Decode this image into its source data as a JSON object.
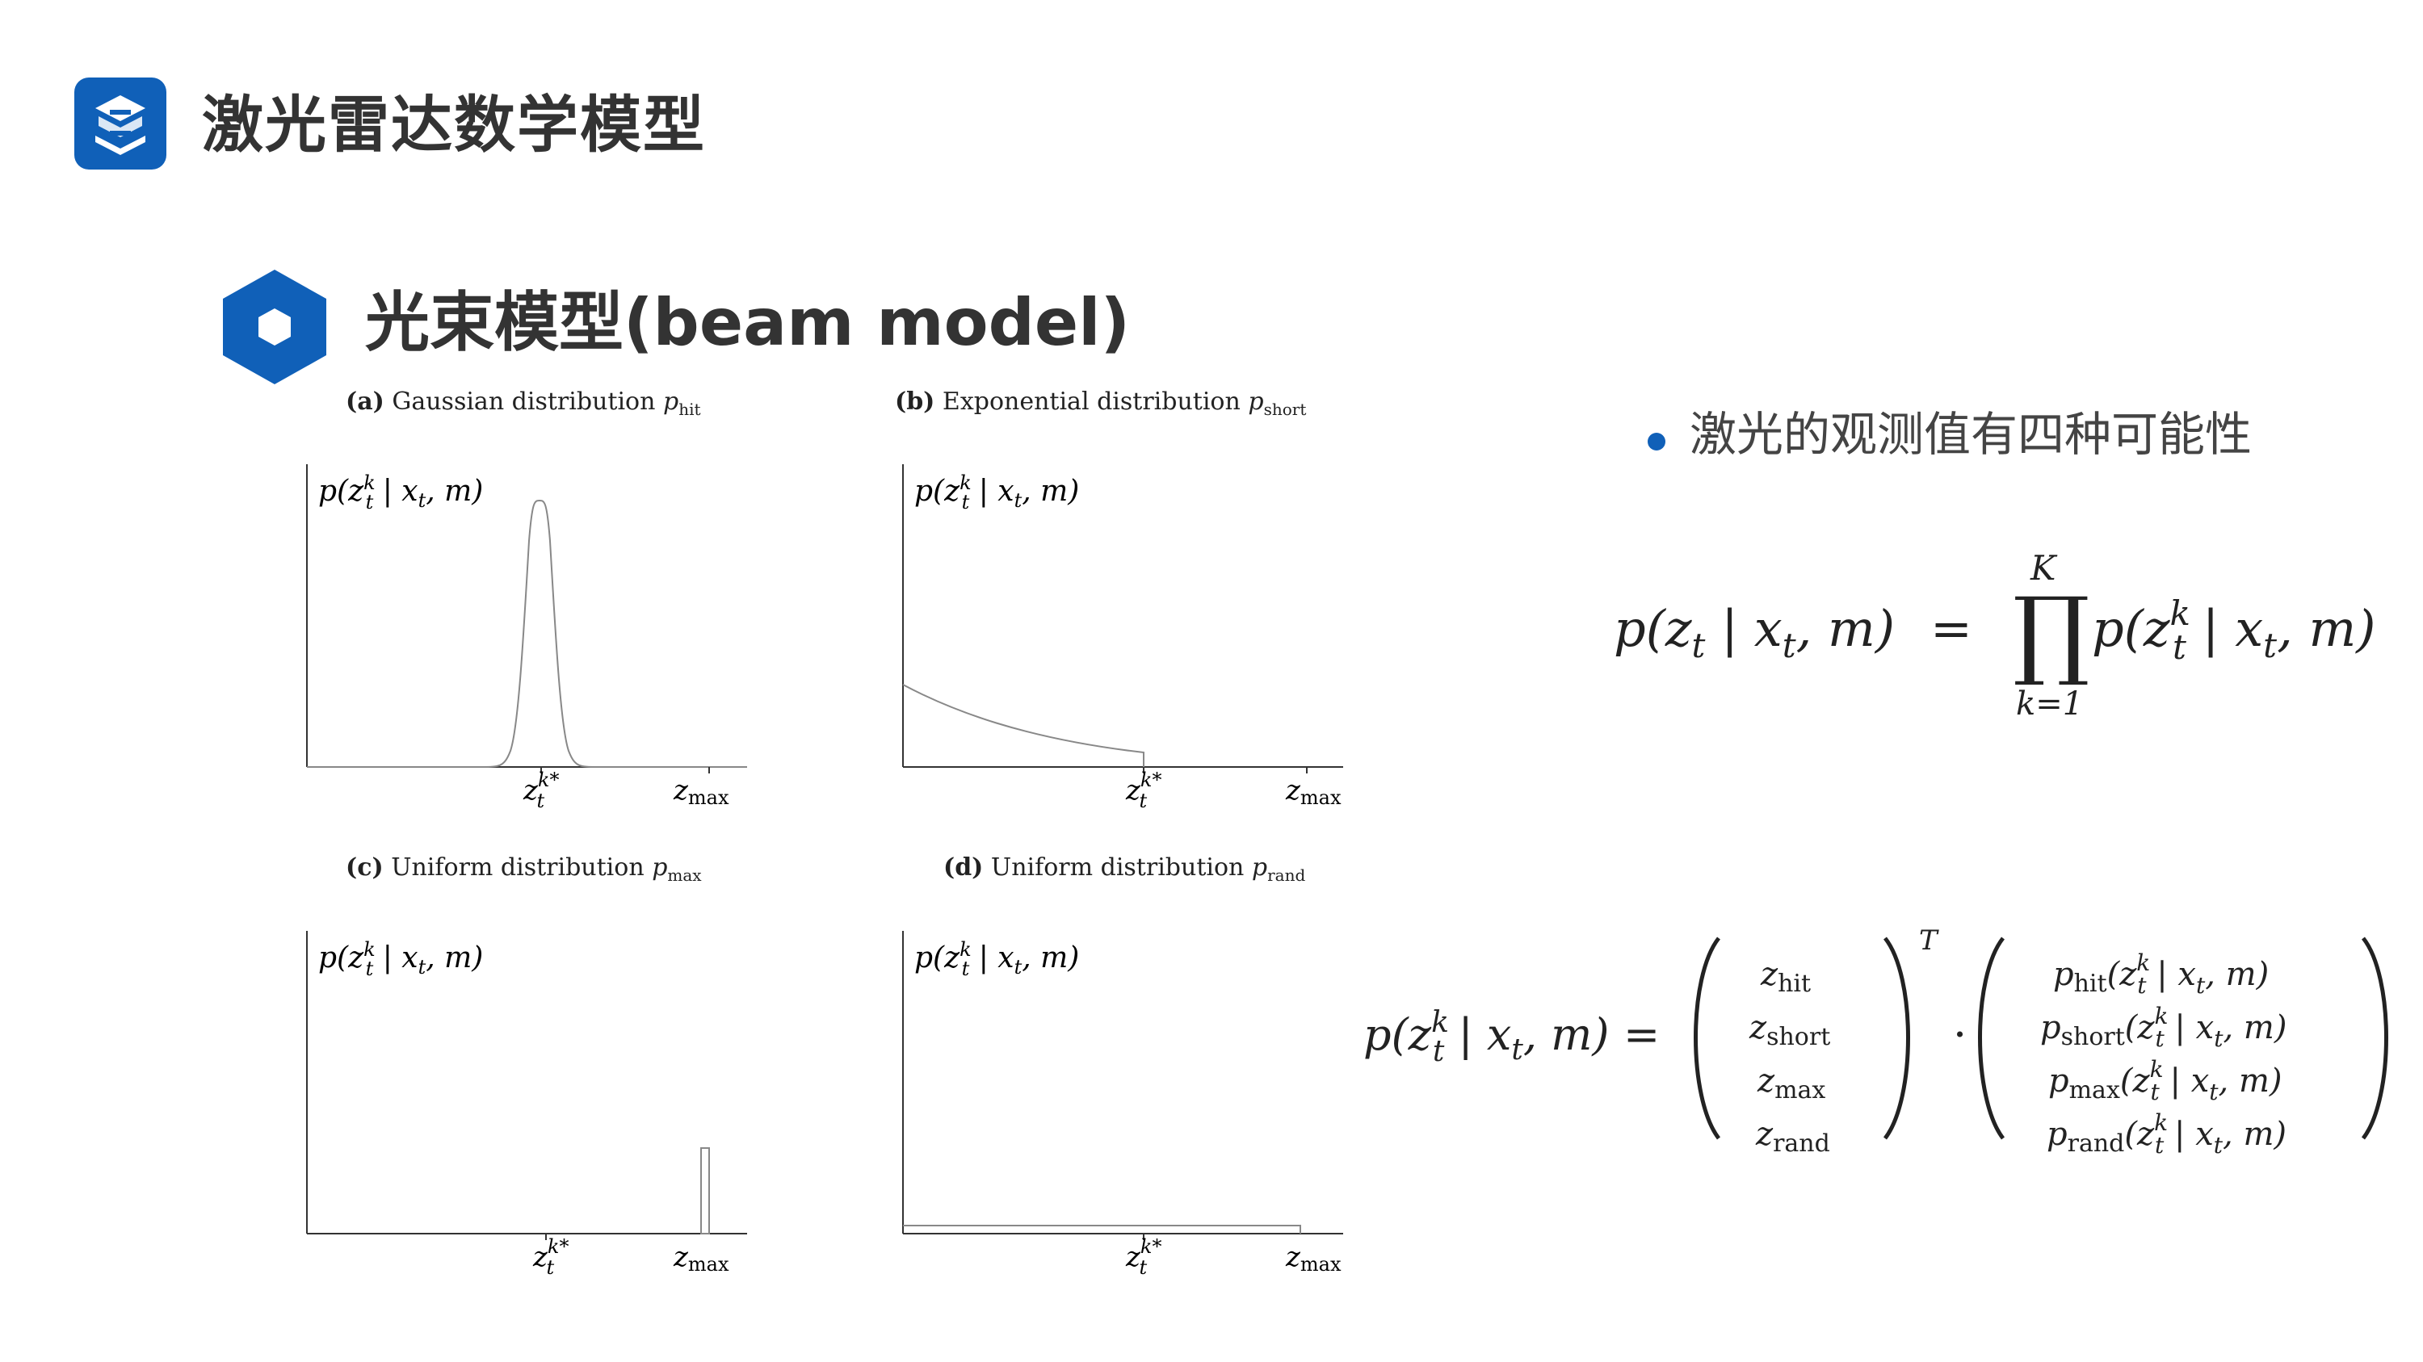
{
  "header": {
    "title": "激光雷达数学模型",
    "logo_icon": "brand-s-logo-icon",
    "accent_color": "#1060b8"
  },
  "section": {
    "icon": "hexagon-icon",
    "title": "光束模型(beam model)"
  },
  "bullet": {
    "text": "激光的观测值有四种可能性"
  },
  "plots": [
    {
      "id": "a",
      "caption_tag": "(a)",
      "caption_text": "Gaussian distribution",
      "caption_sym": "p",
      "caption_sub": "hit",
      "ylabel": "p(z",
      "ylabel_rest": " | x",
      "ylabel_end": ", m)",
      "tick1": "z",
      "tick2": "z",
      "tick2_sub": "max"
    },
    {
      "id": "b",
      "caption_tag": "(b)",
      "caption_text": "Exponential distribution",
      "caption_sym": "p",
      "caption_sub": "short",
      "ylabel": "p(z",
      "ylabel_rest": " | x",
      "ylabel_end": ", m)",
      "tick1": "z",
      "tick2": "z",
      "tick2_sub": "max"
    },
    {
      "id": "c",
      "caption_tag": "(c)",
      "caption_text": "Uniform distribution",
      "caption_sym": "p",
      "caption_sub": "max",
      "ylabel": "p(z",
      "ylabel_rest": " | x",
      "ylabel_end": ", m)",
      "tick1": "z",
      "tick2": "z",
      "tick2_sub": "max"
    },
    {
      "id": "d",
      "caption_tag": "(d)",
      "caption_text": "Uniform distribution",
      "caption_sym": "p",
      "caption_sub": "rand",
      "ylabel": "p(z",
      "ylabel_rest": " | x",
      "ylabel_end": ", m)",
      "tick1": "z",
      "tick2": "z",
      "tick2_sub": "max"
    }
  ],
  "equations": {
    "eq1_lhs": "p(z",
    "eq1_lhs_sub": "t",
    "eq1_lhs_rest": " | x",
    "eq1_lhs_sub2": "t",
    "eq1_lhs_end": ", m)",
    "eq1_equals": "=",
    "eq1_prod": "∏",
    "eq1_upper": "K",
    "eq1_lower": "k=1",
    "eq1_rhs": "p(z",
    "eq1_rhs_sup": "k",
    "eq1_rhs_sub": "t",
    "eq1_rhs_rest": " | x",
    "eq1_rhs_sub2": "t",
    "eq1_rhs_end": ", m)",
    "eq2_lhs": "p(z",
    "eq2_lhs_sup": "k",
    "eq2_lhs_sub": "t",
    "eq2_lhs_rest": " | x",
    "eq2_lhs_sub2": "t",
    "eq2_lhs_end": ", m)",
    "eq2_equals": "=",
    "eq2_transpose": "T",
    "eq2_dot": "·",
    "vec_left": [
      {
        "sym": "z",
        "sub": "hit"
      },
      {
        "sym": "z",
        "sub": "short"
      },
      {
        "sym": "z",
        "sub": "max"
      },
      {
        "sym": "z",
        "sub": "rand"
      }
    ],
    "vec_right": [
      {
        "sym": "p",
        "sub": "hit",
        "rest": "(z",
        "sup": "k",
        "sub2": "t",
        "tail": " | x",
        "sub3": "t",
        "end": ", m)"
      },
      {
        "sym": "p",
        "sub": "short",
        "rest": "(z",
        "sup": "k",
        "sub2": "t",
        "tail": " | x",
        "sub3": "t",
        "end": ", m)"
      },
      {
        "sym": "p",
        "sub": "max",
        "rest": "(z",
        "sup": "k",
        "sub2": "t",
        "tail": " | x",
        "sub3": "t",
        "end": ", m)"
      },
      {
        "sym": "p",
        "sub": "rand",
        "rest": "(z",
        "sup": "k",
        "sub2": "t",
        "tail": " | x",
        "sub3": "t",
        "end": ", m)"
      }
    ]
  }
}
